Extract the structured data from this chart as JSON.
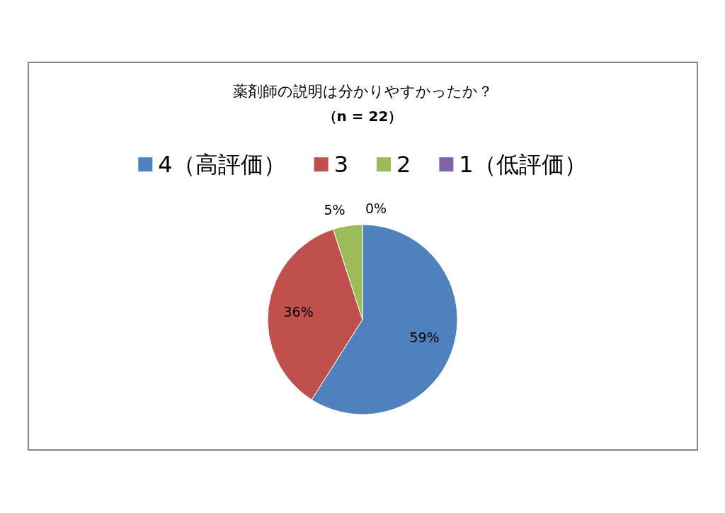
{
  "chart_data": {
    "type": "pie",
    "title": "薬剤師の説明は分かりやすかったか？",
    "subtitle": "（n = 22）",
    "categories": [
      "4（高評価）",
      "3",
      "2",
      "1（低評価）"
    ],
    "values": [
      59,
      36,
      5,
      0
    ],
    "colors": [
      "#4f81bd",
      "#c0504d",
      "#9bbb59",
      "#8064a2"
    ],
    "value_labels": [
      "59%",
      "36%",
      "5%",
      "0%"
    ],
    "legend": "top"
  }
}
